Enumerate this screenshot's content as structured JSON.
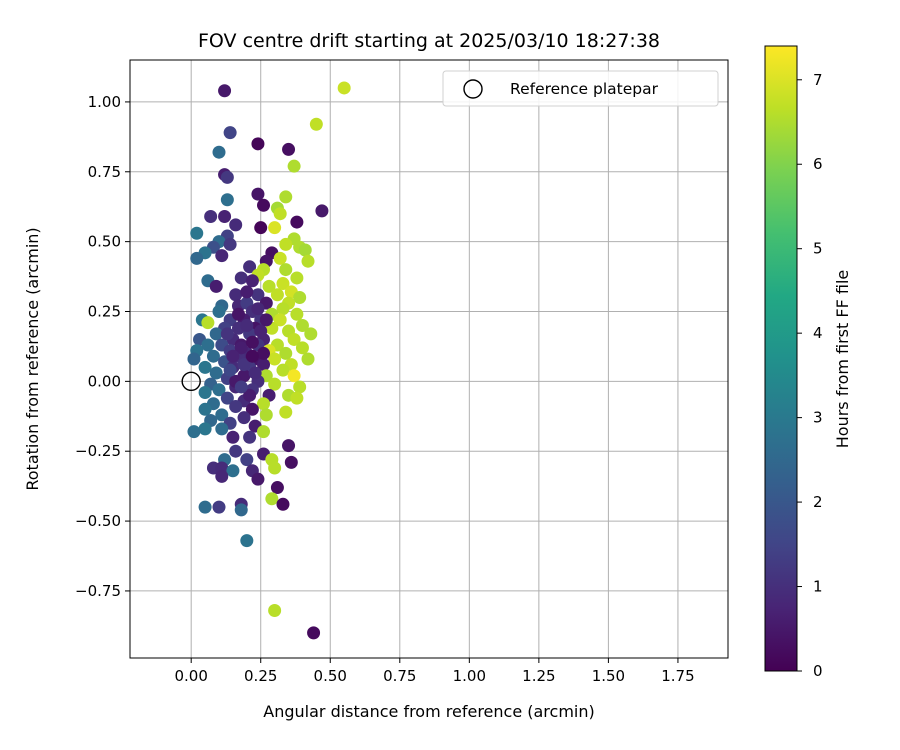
{
  "chart_data": {
    "type": "scatter",
    "title": "FOV centre drift starting at 2025/03/10 18:27:38",
    "xlabel": "Angular distance from reference (arcmin)",
    "ylabel": "Rotation from reference (arcmin)",
    "xlim": [
      -0.22,
      1.93
    ],
    "ylim": [
      -0.99,
      1.15
    ],
    "grid": true,
    "xticks": [
      0.0,
      0.25,
      0.5,
      0.75,
      1.0,
      1.25,
      1.5,
      1.75
    ],
    "xtick_labels": [
      "0.00",
      "0.25",
      "0.50",
      "0.75",
      "1.00",
      "1.25",
      "1.50",
      "1.75"
    ],
    "yticks": [
      -0.75,
      -0.5,
      -0.25,
      0.0,
      0.25,
      0.5,
      0.75,
      1.0
    ],
    "ytick_labels": [
      "−0.75",
      "−0.50",
      "−0.25",
      "0.00",
      "0.25",
      "0.50",
      "0.75",
      "1.00"
    ],
    "legend": {
      "position": "top-right",
      "label": "Reference platepar"
    },
    "reference_point": {
      "x": 0.0,
      "y": 0.0
    },
    "colorbar": {
      "label": "Hours from first FF file",
      "range": [
        0,
        7.4
      ],
      "ticks": [
        0,
        1,
        2,
        3,
        4,
        5,
        6,
        7
      ],
      "colormap": "viridis"
    },
    "points": [
      {
        "x": 0.12,
        "y": 1.04,
        "c": 0.5
      },
      {
        "x": 0.14,
        "y": 0.89,
        "c": 1.5
      },
      {
        "x": 0.1,
        "y": 0.82,
        "c": 2.6
      },
      {
        "x": 0.12,
        "y": 0.74,
        "c": 0.6
      },
      {
        "x": 0.13,
        "y": 0.73,
        "c": 1.2
      },
      {
        "x": 0.24,
        "y": 0.85,
        "c": 0.1
      },
      {
        "x": 0.35,
        "y": 0.83,
        "c": 0.3
      },
      {
        "x": 0.37,
        "y": 0.77,
        "c": 6.5
      },
      {
        "x": 0.45,
        "y": 0.92,
        "c": 6.7
      },
      {
        "x": 0.55,
        "y": 1.05,
        "c": 6.8
      },
      {
        "x": 0.24,
        "y": 0.67,
        "c": 0.4
      },
      {
        "x": 0.34,
        "y": 0.66,
        "c": 6.5
      },
      {
        "x": 0.13,
        "y": 0.65,
        "c": 2.7
      },
      {
        "x": 0.26,
        "y": 0.63,
        "c": 0.2
      },
      {
        "x": 0.31,
        "y": 0.62,
        "c": 6.4
      },
      {
        "x": 0.47,
        "y": 0.61,
        "c": 0.5
      },
      {
        "x": 0.32,
        "y": 0.6,
        "c": 6.7
      },
      {
        "x": 0.07,
        "y": 0.59,
        "c": 1.0
      },
      {
        "x": 0.12,
        "y": 0.59,
        "c": 0.7
      },
      {
        "x": 0.38,
        "y": 0.57,
        "c": 0.2
      },
      {
        "x": 0.16,
        "y": 0.56,
        "c": 0.9
      },
      {
        "x": 0.3,
        "y": 0.55,
        "c": 7.0
      },
      {
        "x": 0.25,
        "y": 0.55,
        "c": 0.1
      },
      {
        "x": 0.02,
        "y": 0.53,
        "c": 2.9
      },
      {
        "x": 0.13,
        "y": 0.52,
        "c": 1.4
      },
      {
        "x": 0.1,
        "y": 0.5,
        "c": 2.6
      },
      {
        "x": 0.37,
        "y": 0.51,
        "c": 6.5
      },
      {
        "x": 0.14,
        "y": 0.49,
        "c": 1.2
      },
      {
        "x": 0.08,
        "y": 0.48,
        "c": 1.8
      },
      {
        "x": 0.34,
        "y": 0.49,
        "c": 6.7
      },
      {
        "x": 0.39,
        "y": 0.48,
        "c": 6.5
      },
      {
        "x": 0.05,
        "y": 0.46,
        "c": 2.8
      },
      {
        "x": 0.29,
        "y": 0.46,
        "c": 0.3
      },
      {
        "x": 0.11,
        "y": 0.45,
        "c": 0.8
      },
      {
        "x": 0.41,
        "y": 0.47,
        "c": 6.4
      },
      {
        "x": 0.02,
        "y": 0.44,
        "c": 2.5
      },
      {
        "x": 0.32,
        "y": 0.44,
        "c": 6.8
      },
      {
        "x": 0.42,
        "y": 0.43,
        "c": 6.6
      },
      {
        "x": 0.27,
        "y": 0.43,
        "c": 0.4
      },
      {
        "x": 0.21,
        "y": 0.41,
        "c": 1.0
      },
      {
        "x": 0.26,
        "y": 0.4,
        "c": 6.6
      },
      {
        "x": 0.34,
        "y": 0.4,
        "c": 6.5
      },
      {
        "x": 0.24,
        "y": 0.38,
        "c": 6.7
      },
      {
        "x": 0.38,
        "y": 0.37,
        "c": 6.6
      },
      {
        "x": 0.06,
        "y": 0.36,
        "c": 2.6
      },
      {
        "x": 0.18,
        "y": 0.37,
        "c": 1.0
      },
      {
        "x": 0.22,
        "y": 0.36,
        "c": 0.7
      },
      {
        "x": 0.33,
        "y": 0.35,
        "c": 6.8
      },
      {
        "x": 0.09,
        "y": 0.34,
        "c": 0.6
      },
      {
        "x": 0.28,
        "y": 0.34,
        "c": 6.6
      },
      {
        "x": 0.36,
        "y": 0.32,
        "c": 6.9
      },
      {
        "x": 0.16,
        "y": 0.31,
        "c": 0.9
      },
      {
        "x": 0.24,
        "y": 0.31,
        "c": 1.1
      },
      {
        "x": 0.31,
        "y": 0.31,
        "c": 6.7
      },
      {
        "x": 0.39,
        "y": 0.3,
        "c": 6.5
      },
      {
        "x": 0.11,
        "y": 0.27,
        "c": 2.5
      },
      {
        "x": 0.17,
        "y": 0.27,
        "c": 0.8
      },
      {
        "x": 0.2,
        "y": 0.28,
        "c": 1.3
      },
      {
        "x": 0.27,
        "y": 0.28,
        "c": 0.5
      },
      {
        "x": 0.35,
        "y": 0.28,
        "c": 6.7
      },
      {
        "x": 0.33,
        "y": 0.26,
        "c": 6.6
      },
      {
        "x": 0.1,
        "y": 0.25,
        "c": 2.7
      },
      {
        "x": 0.22,
        "y": 0.25,
        "c": 1.0
      },
      {
        "x": 0.29,
        "y": 0.24,
        "c": 6.5
      },
      {
        "x": 0.38,
        "y": 0.24,
        "c": 6.6
      },
      {
        "x": 0.04,
        "y": 0.22,
        "c": 2.9
      },
      {
        "x": 0.14,
        "y": 0.22,
        "c": 1.3
      },
      {
        "x": 0.19,
        "y": 0.22,
        "c": 0.6
      },
      {
        "x": 0.25,
        "y": 0.22,
        "c": 1.1
      },
      {
        "x": 0.32,
        "y": 0.22,
        "c": 6.8
      },
      {
        "x": 0.06,
        "y": 0.21,
        "c": 6.6
      },
      {
        "x": 0.4,
        "y": 0.2,
        "c": 6.5
      },
      {
        "x": 0.12,
        "y": 0.19,
        "c": 1.4
      },
      {
        "x": 0.17,
        "y": 0.19,
        "c": 1.0
      },
      {
        "x": 0.23,
        "y": 0.19,
        "c": 0.4
      },
      {
        "x": 0.29,
        "y": 0.19,
        "c": 6.7
      },
      {
        "x": 0.35,
        "y": 0.18,
        "c": 6.6
      },
      {
        "x": 0.09,
        "y": 0.17,
        "c": 2.5
      },
      {
        "x": 0.21,
        "y": 0.17,
        "c": 1.2
      },
      {
        "x": 0.43,
        "y": 0.17,
        "c": 6.5
      },
      {
        "x": 0.03,
        "y": 0.15,
        "c": 2.0
      },
      {
        "x": 0.15,
        "y": 0.15,
        "c": 0.9
      },
      {
        "x": 0.26,
        "y": 0.15,
        "c": 0.7
      },
      {
        "x": 0.37,
        "y": 0.15,
        "c": 6.7
      },
      {
        "x": 0.06,
        "y": 0.13,
        "c": 2.7
      },
      {
        "x": 0.11,
        "y": 0.13,
        "c": 1.7
      },
      {
        "x": 0.18,
        "y": 0.13,
        "c": 0.5
      },
      {
        "x": 0.24,
        "y": 0.13,
        "c": 1.1
      },
      {
        "x": 0.31,
        "y": 0.13,
        "c": 6.6
      },
      {
        "x": 0.4,
        "y": 0.12,
        "c": 6.6
      },
      {
        "x": 0.02,
        "y": 0.11,
        "c": 2.8
      },
      {
        "x": 0.14,
        "y": 0.11,
        "c": 1.3
      },
      {
        "x": 0.2,
        "y": 0.1,
        "c": 0.8
      },
      {
        "x": 0.28,
        "y": 0.11,
        "c": 7.0
      },
      {
        "x": 0.34,
        "y": 0.1,
        "c": 6.5
      },
      {
        "x": 0.08,
        "y": 0.09,
        "c": 2.6
      },
      {
        "x": 0.17,
        "y": 0.09,
        "c": 1.0
      },
      {
        "x": 0.23,
        "y": 0.08,
        "c": 0.4
      },
      {
        "x": 0.01,
        "y": 0.08,
        "c": 2.4
      },
      {
        "x": 0.3,
        "y": 0.08,
        "c": 6.8
      },
      {
        "x": 0.42,
        "y": 0.08,
        "c": 6.5
      },
      {
        "x": 0.12,
        "y": 0.07,
        "c": 1.9
      },
      {
        "x": 0.26,
        "y": 0.06,
        "c": 0.6
      },
      {
        "x": 0.36,
        "y": 0.06,
        "c": 6.7
      },
      {
        "x": 0.05,
        "y": 0.05,
        "c": 2.9
      },
      {
        "x": 0.15,
        "y": 0.05,
        "c": 0.9
      },
      {
        "x": 0.21,
        "y": 0.05,
        "c": 1.2
      },
      {
        "x": 0.33,
        "y": 0.04,
        "c": 6.6
      },
      {
        "x": 0.09,
        "y": 0.03,
        "c": 2.6
      },
      {
        "x": 0.19,
        "y": 0.02,
        "c": 0.5
      },
      {
        "x": 0.27,
        "y": 0.02,
        "c": 6.5
      },
      {
        "x": 0.37,
        "y": 0.02,
        "c": 7.3
      },
      {
        "x": 0.13,
        "y": 0.01,
        "c": 1.4
      },
      {
        "x": 0.24,
        "y": 0.0,
        "c": 1.0
      },
      {
        "x": 0.07,
        "y": -0.01,
        "c": 2.3
      },
      {
        "x": 0.3,
        "y": -0.01,
        "c": 6.6
      },
      {
        "x": 0.16,
        "y": -0.02,
        "c": 0.8
      },
      {
        "x": 0.39,
        "y": -0.02,
        "c": 6.6
      },
      {
        "x": 0.1,
        "y": -0.03,
        "c": 2.7
      },
      {
        "x": 0.22,
        "y": -0.03,
        "c": 1.1
      },
      {
        "x": 0.05,
        "y": -0.04,
        "c": 2.9
      },
      {
        "x": 0.28,
        "y": -0.05,
        "c": 0.6
      },
      {
        "x": 0.35,
        "y": -0.05,
        "c": 6.5
      },
      {
        "x": 0.13,
        "y": -0.06,
        "c": 1.5
      },
      {
        "x": 0.19,
        "y": -0.07,
        "c": 0.9
      },
      {
        "x": 0.38,
        "y": -0.06,
        "c": 6.7
      },
      {
        "x": 0.08,
        "y": -0.08,
        "c": 2.6
      },
      {
        "x": 0.26,
        "y": -0.08,
        "c": 6.6
      },
      {
        "x": 0.16,
        "y": -0.09,
        "c": 1.2
      },
      {
        "x": 0.05,
        "y": -0.1,
        "c": 2.8
      },
      {
        "x": 0.22,
        "y": -0.1,
        "c": 0.4
      },
      {
        "x": 0.34,
        "y": -0.11,
        "c": 6.7
      },
      {
        "x": 0.11,
        "y": -0.12,
        "c": 2.6
      },
      {
        "x": 0.19,
        "y": -0.13,
        "c": 1.0
      },
      {
        "x": 0.27,
        "y": -0.12,
        "c": 6.5
      },
      {
        "x": 0.07,
        "y": -0.14,
        "c": 2.5
      },
      {
        "x": 0.14,
        "y": -0.15,
        "c": 1.4
      },
      {
        "x": 0.23,
        "y": -0.16,
        "c": 0.6
      },
      {
        "x": 0.05,
        "y": -0.17,
        "c": 2.9
      },
      {
        "x": 0.11,
        "y": -0.17,
        "c": 2.6
      },
      {
        "x": 0.01,
        "y": -0.18,
        "c": 2.7
      },
      {
        "x": 0.26,
        "y": -0.18,
        "c": 6.5
      },
      {
        "x": 0.15,
        "y": -0.2,
        "c": 0.7
      },
      {
        "x": 0.21,
        "y": -0.2,
        "c": 1.1
      },
      {
        "x": 0.35,
        "y": -0.23,
        "c": 0.4
      },
      {
        "x": 0.16,
        "y": -0.25,
        "c": 1.2
      },
      {
        "x": 0.26,
        "y": -0.26,
        "c": 0.6
      },
      {
        "x": 0.12,
        "y": -0.28,
        "c": 2.6
      },
      {
        "x": 0.2,
        "y": -0.28,
        "c": 1.4
      },
      {
        "x": 0.29,
        "y": -0.28,
        "c": 6.6
      },
      {
        "x": 0.36,
        "y": -0.29,
        "c": 0.3
      },
      {
        "x": 0.08,
        "y": -0.31,
        "c": 1.0
      },
      {
        "x": 0.11,
        "y": -0.31,
        "c": 0.9
      },
      {
        "x": 0.15,
        "y": -0.32,
        "c": 2.7
      },
      {
        "x": 0.22,
        "y": -0.32,
        "c": 0.8
      },
      {
        "x": 0.3,
        "y": -0.31,
        "c": 6.6
      },
      {
        "x": 0.11,
        "y": -0.34,
        "c": 0.8
      },
      {
        "x": 0.24,
        "y": -0.35,
        "c": 0.5
      },
      {
        "x": 0.31,
        "y": -0.38,
        "c": 0.3
      },
      {
        "x": 0.29,
        "y": -0.42,
        "c": 6.5
      },
      {
        "x": 0.18,
        "y": -0.44,
        "c": 0.9
      },
      {
        "x": 0.33,
        "y": -0.44,
        "c": 0.2
      },
      {
        "x": 0.05,
        "y": -0.45,
        "c": 2.6
      },
      {
        "x": 0.1,
        "y": -0.45,
        "c": 1.3
      },
      {
        "x": 0.18,
        "y": -0.46,
        "c": 2.5
      },
      {
        "x": 0.2,
        "y": -0.57,
        "c": 2.8
      },
      {
        "x": 0.3,
        "y": -0.82,
        "c": 6.6
      },
      {
        "x": 0.44,
        "y": -0.9,
        "c": 0.2
      },
      {
        "x": 0.18,
        "y": 0.12,
        "c": 0.6
      },
      {
        "x": 0.2,
        "y": 0.2,
        "c": 0.9
      },
      {
        "x": 0.22,
        "y": 0.14,
        "c": 0.3
      },
      {
        "x": 0.25,
        "y": 0.18,
        "c": 0.7
      },
      {
        "x": 0.19,
        "y": 0.06,
        "c": 1.1
      },
      {
        "x": 0.16,
        "y": 0.0,
        "c": 0.5
      },
      {
        "x": 0.21,
        "y": -0.05,
        "c": 0.6
      },
      {
        "x": 0.24,
        "y": 0.26,
        "c": 0.8
      },
      {
        "x": 0.17,
        "y": 0.24,
        "c": 0.4
      },
      {
        "x": 0.14,
        "y": 0.04,
        "c": 1.6
      },
      {
        "x": 0.23,
        "y": 0.03,
        "c": 0.9
      },
      {
        "x": 0.27,
        "y": 0.22,
        "c": 0.5
      },
      {
        "x": 0.2,
        "y": 0.32,
        "c": 0.6
      },
      {
        "x": 0.13,
        "y": 0.17,
        "c": 1.1
      },
      {
        "x": 0.26,
        "y": 0.1,
        "c": 0.3
      },
      {
        "x": 0.18,
        "y": -0.02,
        "c": 1.3
      },
      {
        "x": 0.22,
        "y": 0.09,
        "c": 0.2
      },
      {
        "x": 0.15,
        "y": 0.09,
        "c": 0.7
      }
    ]
  }
}
